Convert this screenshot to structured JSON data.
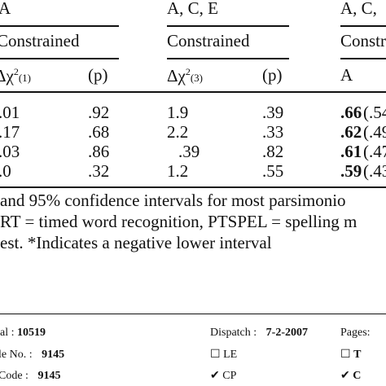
{
  "table": {
    "groups": [
      "A",
      "A, C, E",
      "A, C,"
    ],
    "subgroups": [
      "Constrained",
      "Constrained",
      "Constr"
    ],
    "columns": [
      "Δχ",
      "(1)",
      "(p)",
      "Δχ",
      "(3)",
      "(p)",
      "A"
    ],
    "rows": [
      [
        ".01",
        ".92",
        "1.9",
        ".39",
        ".66",
        "(.54"
      ],
      [
        ".17",
        ".68",
        "2.2",
        ".33",
        ".62",
        "(.49"
      ],
      [
        ".03",
        ".86",
        ".39",
        ".82",
        ".61",
        "(.47"
      ],
      [
        ".0",
        ".32",
        "1.2",
        ".55",
        ".59",
        "(.43"
      ]
    ]
  },
  "caption": [
    "and 95% confidence intervals for most parsimonio",
    "RT = timed word recognition, PTSPEL = spelling m",
    "est. *Indicates a negative lower interval"
  ],
  "footer": {
    "journal_label": "al :",
    "journal": "10519",
    "dispatch_label": "Dispatch :",
    "dispatch": "7-2-2007",
    "pages_label": "Pages:",
    "file_label": "le No. :",
    "file": "9145",
    "code_label": "Code :",
    "code": "9145",
    "checks": [
      {
        "mark": "☐",
        "label": "LE"
      },
      {
        "mark": "✔",
        "label": "CP"
      },
      {
        "mark": "☐",
        "label": "T"
      },
      {
        "mark": "✔",
        "label": "C"
      }
    ]
  }
}
